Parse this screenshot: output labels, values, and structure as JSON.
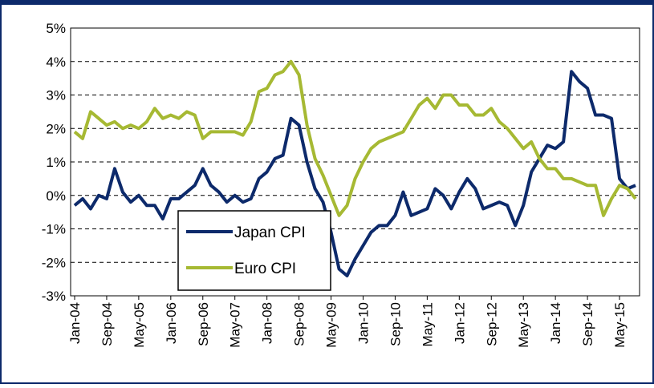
{
  "chart_data": {
    "type": "line",
    "categories": [
      "Jan-04",
      null,
      null,
      null,
      "Sep-04",
      null,
      null,
      null,
      "May-05",
      null,
      null,
      null,
      "Jan-06",
      null,
      null,
      null,
      "Sep-06",
      null,
      null,
      null,
      "May-07",
      null,
      null,
      null,
      "Jan-08",
      null,
      null,
      null,
      "Sep-08",
      null,
      null,
      null,
      "May-09",
      null,
      null,
      null,
      "Jan-10",
      null,
      null,
      null,
      "Sep-10",
      null,
      null,
      null,
      "May-11",
      null,
      null,
      null,
      "Jan-12",
      null,
      null,
      null,
      "Sep-12",
      null,
      null,
      null,
      "May-13",
      null,
      null,
      null,
      "Jan-14",
      null,
      null,
      null,
      "Sep-14",
      null,
      null,
      null,
      "May-15",
      null,
      null
    ],
    "series": [
      {
        "name": "Japan CPI",
        "color": "#0d2a6b",
        "values": [
          -0.3,
          -0.1,
          -0.4,
          0.0,
          -0.1,
          0.8,
          0.1,
          -0.2,
          0.0,
          -0.3,
          -0.3,
          -0.7,
          -0.1,
          -0.1,
          0.1,
          0.3,
          0.8,
          0.3,
          0.1,
          -0.2,
          0.0,
          -0.2,
          -0.1,
          0.5,
          0.7,
          1.1,
          1.2,
          2.3,
          2.1,
          1.0,
          0.2,
          -0.2,
          -1.1,
          -2.2,
          -2.4,
          -1.9,
          -1.5,
          -1.1,
          -0.9,
          -0.9,
          -0.6,
          0.1,
          -0.6,
          -0.5,
          -0.4,
          0.2,
          0.0,
          -0.4,
          0.1,
          0.5,
          0.2,
          -0.4,
          -0.3,
          -0.2,
          -0.3,
          -0.9,
          -0.3,
          0.7,
          1.1,
          1.5,
          1.4,
          1.6,
          3.7,
          3.4,
          3.2,
          2.4,
          2.4,
          2.3,
          0.5,
          0.2,
          0.3
        ]
      },
      {
        "name": "Euro CPI",
        "color": "#a6b933",
        "values": [
          1.9,
          1.7,
          2.5,
          2.3,
          2.1,
          2.2,
          2.0,
          2.1,
          2.0,
          2.2,
          2.6,
          2.3,
          2.4,
          2.3,
          2.5,
          2.4,
          1.7,
          1.9,
          1.9,
          1.9,
          1.9,
          1.8,
          2.2,
          3.1,
          3.2,
          3.6,
          3.7,
          4.0,
          3.6,
          2.1,
          1.1,
          0.6,
          0.0,
          -0.6,
          -0.3,
          0.5,
          1.0,
          1.4,
          1.6,
          1.7,
          1.8,
          1.9,
          2.3,
          2.7,
          2.9,
          2.6,
          3.0,
          3.0,
          2.7,
          2.7,
          2.4,
          2.4,
          2.6,
          2.2,
          2.0,
          1.7,
          1.4,
          1.6,
          1.1,
          0.8,
          0.8,
          0.5,
          0.5,
          0.4,
          0.3,
          0.3,
          -0.6,
          -0.1,
          0.3,
          0.2,
          -0.1
        ]
      }
    ],
    "ylim": [
      -3,
      5
    ],
    "yticks": [
      {
        "value": -3,
        "label": "-3%"
      },
      {
        "value": -2,
        "label": "-2%"
      },
      {
        "value": -1,
        "label": "-1%"
      },
      {
        "value": 0,
        "label": "0%"
      },
      {
        "value": 1,
        "label": "1%"
      },
      {
        "value": 2,
        "label": "2%"
      },
      {
        "value": 3,
        "label": "3%"
      },
      {
        "value": 4,
        "label": "4%"
      },
      {
        "value": 5,
        "label": "5%"
      }
    ],
    "grid": true,
    "legend": "lower-left"
  }
}
